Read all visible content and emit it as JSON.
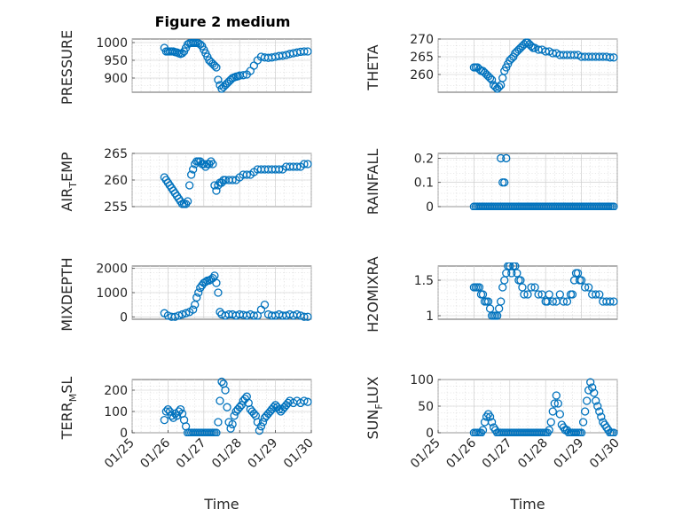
{
  "figure_title": "Figure 2 medium",
  "colors": {
    "marker": "#0072BD",
    "axis": "#262626"
  },
  "chart_data": [
    {
      "type": "scatter",
      "id": "pressure",
      "ylabel": "PRESSURE",
      "ylim": [
        860,
        1010
      ],
      "yticks": [
        900,
        950,
        1000
      ],
      "ytick_labels": [
        "900",
        "950",
        "1000"
      ],
      "xlim": [
        0,
        5
      ],
      "xlabel": "",
      "x": [
        0.9,
        0.95,
        1.0,
        1.05,
        1.1,
        1.15,
        1.2,
        1.25,
        1.3,
        1.35,
        1.4,
        1.45,
        1.5,
        1.55,
        1.6,
        1.65,
        1.7,
        1.75,
        1.8,
        1.85,
        1.9,
        1.95,
        2.0,
        2.05,
        2.1,
        2.15,
        2.2,
        2.25,
        2.3,
        2.35,
        2.4,
        2.45,
        2.5,
        2.55,
        2.6,
        2.65,
        2.7,
        2.75,
        2.8,
        2.85,
        2.9,
        2.95,
        3.0,
        3.1,
        3.2,
        3.3,
        3.4,
        3.5,
        3.6,
        3.7,
        3.8,
        3.9,
        4.0,
        4.1,
        4.2,
        4.3,
        4.4,
        4.5,
        4.6,
        4.7,
        4.8,
        4.9
      ],
      "y": [
        985,
        975,
        975,
        975,
        975,
        975,
        973,
        972,
        970,
        968,
        970,
        975,
        985,
        995,
        998,
        999,
        999,
        999,
        999,
        998,
        995,
        990,
        980,
        970,
        960,
        950,
        945,
        940,
        935,
        930,
        895,
        880,
        870,
        875,
        880,
        885,
        890,
        895,
        900,
        902,
        904,
        905,
        907,
        908,
        910,
        920,
        935,
        950,
        960,
        958,
        957,
        958,
        960,
        962,
        963,
        965,
        968,
        970,
        972,
        974,
        975,
        975
      ]
    },
    {
      "type": "scatter",
      "id": "theta",
      "ylabel": "THETA",
      "ylim": [
        255,
        270
      ],
      "yticks": [
        260,
        265,
        270
      ],
      "ytick_labels": [
        "260",
        "265",
        "270"
      ],
      "xlim": [
        0,
        5
      ],
      "xlabel": "",
      "x": [
        1.0,
        1.05,
        1.1,
        1.15,
        1.2,
        1.25,
        1.3,
        1.35,
        1.4,
        1.45,
        1.5,
        1.55,
        1.6,
        1.65,
        1.7,
        1.75,
        1.8,
        1.85,
        1.9,
        1.95,
        2.0,
        2.05,
        2.1,
        2.15,
        2.2,
        2.25,
        2.3,
        2.35,
        2.4,
        2.45,
        2.5,
        2.55,
        2.6,
        2.65,
        2.7,
        2.8,
        2.9,
        3.0,
        3.1,
        3.2,
        3.3,
        3.4,
        3.5,
        3.6,
        3.7,
        3.8,
        3.9,
        4.0,
        4.1,
        4.2,
        4.3,
        4.4,
        4.5,
        4.6,
        4.7,
        4.8,
        4.9
      ],
      "y": [
        262,
        262,
        262,
        261.5,
        261,
        261,
        260.5,
        260,
        259.5,
        259,
        258.5,
        257,
        256.5,
        256,
        256.5,
        257,
        259,
        261,
        262,
        263,
        264,
        264.5,
        265,
        266,
        266.5,
        267,
        267.5,
        268,
        268.5,
        269,
        269,
        268.5,
        268,
        267.5,
        267.5,
        267,
        267,
        266.5,
        266.5,
        266,
        266,
        265.5,
        265.5,
        265.5,
        265.5,
        265.5,
        265.5,
        265,
        265,
        265,
        265,
        265,
        265,
        265,
        265,
        264.8,
        264.8
      ]
    },
    {
      "type": "scatter",
      "id": "air_temp",
      "ylabel": "AIR_TEMP",
      "ylim": [
        255,
        265
      ],
      "yticks": [
        255,
        260,
        265
      ],
      "ytick_labels": [
        "255",
        "260",
        "265"
      ],
      "xlim": [
        0,
        5
      ],
      "xlabel": "",
      "x": [
        0.9,
        0.95,
        1.0,
        1.05,
        1.1,
        1.15,
        1.2,
        1.25,
        1.3,
        1.35,
        1.4,
        1.45,
        1.5,
        1.55,
        1.6,
        1.65,
        1.7,
        1.75,
        1.8,
        1.85,
        1.9,
        1.95,
        2.0,
        2.05,
        2.1,
        2.15,
        2.2,
        2.25,
        2.3,
        2.35,
        2.4,
        2.45,
        2.5,
        2.55,
        2.6,
        2.7,
        2.8,
        2.9,
        3.0,
        3.1,
        3.2,
        3.3,
        3.4,
        3.5,
        3.6,
        3.7,
        3.8,
        3.9,
        4.0,
        4.1,
        4.2,
        4.3,
        4.4,
        4.5,
        4.6,
        4.7,
        4.8,
        4.9
      ],
      "y": [
        260.5,
        260,
        259.5,
        259,
        258.5,
        258,
        257.5,
        257,
        256.5,
        256,
        255.5,
        255.5,
        255.5,
        256,
        259,
        261,
        262,
        263,
        263.5,
        263.5,
        263.5,
        263,
        263,
        262.5,
        263,
        263,
        263.5,
        263,
        259,
        258,
        259,
        259.5,
        259.5,
        260,
        260,
        260,
        260,
        260,
        260.5,
        261,
        261,
        261,
        261.5,
        262,
        262,
        262,
        262,
        262,
        262,
        262,
        262,
        262.5,
        262.5,
        262.5,
        262.5,
        262.5,
        263,
        263
      ]
    },
    {
      "type": "scatter",
      "id": "rainfall",
      "ylabel": "RAINFALL",
      "ylim": [
        0,
        0.22
      ],
      "yticks": [
        0,
        0.1,
        0.2
      ],
      "ytick_labels": [
        "0",
        "0.1",
        "0.2"
      ],
      "xlim": [
        0,
        5
      ],
      "xlabel": "",
      "x": [
        1.0,
        1.05,
        1.1,
        1.15,
        1.2,
        1.25,
        1.3,
        1.35,
        1.4,
        1.45,
        1.5,
        1.55,
        1.6,
        1.65,
        1.7,
        1.75,
        1.8,
        1.85,
        1.9,
        1.95,
        2.0,
        2.05,
        2.1,
        2.15,
        2.2,
        2.25,
        2.3,
        2.35,
        2.4,
        2.45,
        2.5,
        2.55,
        2.6,
        2.65,
        2.7,
        2.75,
        2.8,
        2.85,
        2.9,
        2.95,
        3.0,
        3.05,
        3.1,
        3.15,
        3.2,
        3.25,
        3.3,
        3.35,
        3.4,
        3.45,
        3.5,
        3.55,
        3.6,
        3.65,
        3.7,
        3.75,
        3.8,
        3.85,
        3.9,
        3.95,
        4.0,
        4.05,
        4.1,
        4.15,
        4.2,
        4.25,
        4.3,
        4.35,
        4.4,
        4.45,
        4.5,
        4.55,
        4.6,
        4.65,
        4.7,
        4.75,
        4.8,
        4.85,
        4.9,
        1.75,
        1.8,
        1.85,
        1.9
      ],
      "y": [
        0,
        0,
        0,
        0,
        0,
        0,
        0,
        0,
        0,
        0,
        0,
        0,
        0,
        0,
        0,
        0,
        0,
        0,
        0,
        0,
        0,
        0,
        0,
        0,
        0,
        0,
        0,
        0,
        0,
        0,
        0,
        0,
        0,
        0,
        0,
        0,
        0,
        0,
        0,
        0,
        0,
        0,
        0,
        0,
        0,
        0,
        0,
        0,
        0,
        0,
        0,
        0,
        0,
        0,
        0,
        0,
        0,
        0,
        0,
        0,
        0,
        0,
        0,
        0,
        0,
        0,
        0,
        0,
        0,
        0,
        0,
        0,
        0,
        0,
        0,
        0,
        0,
        0,
        0,
        0.2,
        0.1,
        0.1,
        0.2
      ]
    },
    {
      "type": "scatter",
      "id": "mixdepth",
      "ylabel": "MIXDEPTH",
      "ylim": [
        -100,
        2100
      ],
      "yticks": [
        0,
        1000,
        2000
      ],
      "ytick_labels": [
        "0",
        "1000",
        "2000"
      ],
      "xlim": [
        0,
        5
      ],
      "xlabel": "",
      "x": [
        0.9,
        1.0,
        1.1,
        1.2,
        1.3,
        1.4,
        1.5,
        1.6,
        1.7,
        1.75,
        1.8,
        1.85,
        1.9,
        1.95,
        2.0,
        2.05,
        2.1,
        2.15,
        2.2,
        2.25,
        2.3,
        2.35,
        2.4,
        2.45,
        2.5,
        2.6,
        2.7,
        2.8,
        2.9,
        3.0,
        3.1,
        3.2,
        3.3,
        3.4,
        3.5,
        3.6,
        3.7,
        3.8,
        3.9,
        4.0,
        4.1,
        4.2,
        4.3,
        4.4,
        4.5,
        4.6,
        4.7,
        4.8,
        4.9
      ],
      "y": [
        150,
        50,
        0,
        0,
        50,
        100,
        150,
        200,
        300,
        500,
        800,
        1000,
        1200,
        1300,
        1400,
        1450,
        1500,
        1500,
        1550,
        1600,
        1700,
        1400,
        1000,
        200,
        100,
        50,
        100,
        100,
        50,
        100,
        80,
        50,
        100,
        50,
        50,
        300,
        500,
        100,
        50,
        50,
        100,
        50,
        50,
        100,
        50,
        100,
        50,
        0,
        0
      ]
    },
    {
      "type": "scatter",
      "id": "h2omixra",
      "ylabel": "H2OMIXRA",
      "ylim": [
        0.95,
        1.7
      ],
      "yticks": [
        1,
        1.5
      ],
      "ytick_labels": [
        "1",
        "1.5"
      ],
      "xlim": [
        0,
        5
      ],
      "xlabel": "",
      "x": [
        1.0,
        1.05,
        1.1,
        1.15,
        1.2,
        1.25,
        1.3,
        1.35,
        1.4,
        1.45,
        1.5,
        1.55,
        1.6,
        1.65,
        1.7,
        1.75,
        1.8,
        1.85,
        1.9,
        1.95,
        2.0,
        2.05,
        2.1,
        2.15,
        2.2,
        2.25,
        2.3,
        2.35,
        2.4,
        2.5,
        2.6,
        2.7,
        2.8,
        2.9,
        3.0,
        3.05,
        3.1,
        3.2,
        3.3,
        3.4,
        3.5,
        3.6,
        3.7,
        3.75,
        3.8,
        3.85,
        3.9,
        3.95,
        4.0,
        4.1,
        4.2,
        4.3,
        4.4,
        4.5,
        4.6,
        4.7,
        4.8,
        4.9
      ],
      "y": [
        1.4,
        1.4,
        1.4,
        1.4,
        1.3,
        1.3,
        1.2,
        1.2,
        1.2,
        1.1,
        1.0,
        1.0,
        1.0,
        1.0,
        1.1,
        1.2,
        1.4,
        1.5,
        1.6,
        1.7,
        1.7,
        1.6,
        1.7,
        1.7,
        1.6,
        1.5,
        1.5,
        1.4,
        1.3,
        1.3,
        1.4,
        1.4,
        1.3,
        1.3,
        1.2,
        1.2,
        1.3,
        1.2,
        1.2,
        1.3,
        1.2,
        1.2,
        1.3,
        1.3,
        1.5,
        1.6,
        1.6,
        1.5,
        1.5,
        1.4,
        1.4,
        1.3,
        1.3,
        1.3,
        1.2,
        1.2,
        1.2,
        1.2
      ]
    },
    {
      "type": "scatter",
      "id": "terr_msl",
      "ylabel": "TERR_MSL",
      "ylim": [
        0,
        250
      ],
      "yticks": [
        0,
        100,
        200
      ],
      "ytick_labels": [
        "0",
        "100",
        "200"
      ],
      "xlim": [
        0,
        5
      ],
      "xlabel": "Time",
      "xticks": [
        0,
        1,
        2,
        3,
        4,
        5
      ],
      "xtick_labels": [
        "01/25",
        "01/26",
        "01/27",
        "01/28",
        "01/29",
        "01/30"
      ],
      "x": [
        0.9,
        0.95,
        1.0,
        1.05,
        1.1,
        1.15,
        1.2,
        1.25,
        1.3,
        1.35,
        1.4,
        1.45,
        1.5,
        1.55,
        1.6,
        1.65,
        1.7,
        1.75,
        1.8,
        1.85,
        1.9,
        1.95,
        2.0,
        2.05,
        2.1,
        2.15,
        2.2,
        2.25,
        2.3,
        2.35,
        2.4,
        2.45,
        2.5,
        2.55,
        2.6,
        2.65,
        2.7,
        2.75,
        2.8,
        2.85,
        2.9,
        2.95,
        3.0,
        3.05,
        3.1,
        3.15,
        3.2,
        3.25,
        3.3,
        3.35,
        3.4,
        3.45,
        3.5,
        3.55,
        3.6,
        3.65,
        3.7,
        3.75,
        3.8,
        3.85,
        3.9,
        3.95,
        4.0,
        4.05,
        4.1,
        4.15,
        4.2,
        4.25,
        4.3,
        4.35,
        4.4,
        4.5,
        4.6,
        4.7,
        4.8,
        4.9
      ],
      "y": [
        60,
        100,
        110,
        100,
        80,
        70,
        90,
        80,
        100,
        110,
        90,
        60,
        30,
        0,
        0,
        0,
        0,
        0,
        0,
        0,
        0,
        0,
        0,
        0,
        0,
        0,
        0,
        0,
        0,
        0,
        50,
        150,
        240,
        230,
        200,
        120,
        50,
        20,
        40,
        80,
        100,
        110,
        120,
        130,
        150,
        160,
        170,
        140,
        110,
        100,
        90,
        80,
        50,
        10,
        30,
        50,
        70,
        80,
        90,
        100,
        110,
        120,
        130,
        120,
        110,
        100,
        110,
        120,
        130,
        140,
        150,
        140,
        150,
        140,
        150,
        145
      ]
    },
    {
      "type": "scatter",
      "id": "sun_flux",
      "ylabel": "SUN_FLUX",
      "ylim": [
        0,
        100
      ],
      "yticks": [
        0,
        50,
        100
      ],
      "ytick_labels": [
        "0",
        "50",
        "100"
      ],
      "xlim": [
        0,
        5
      ],
      "xlabel": "Time",
      "xticks": [
        0,
        1,
        2,
        3,
        4,
        5
      ],
      "xtick_labels": [
        "01/25",
        "01/26",
        "01/27",
        "01/28",
        "01/29",
        "01/30"
      ],
      "x": [
        1.0,
        1.05,
        1.1,
        1.15,
        1.2,
        1.25,
        1.3,
        1.35,
        1.4,
        1.45,
        1.5,
        1.55,
        1.6,
        1.65,
        1.7,
        1.75,
        1.8,
        1.85,
        1.9,
        1.95,
        2.0,
        2.05,
        2.1,
        2.15,
        2.2,
        2.25,
        2.3,
        2.35,
        2.4,
        2.45,
        2.5,
        2.55,
        2.6,
        2.65,
        2.7,
        2.75,
        2.8,
        2.85,
        2.9,
        2.95,
        3.0,
        3.05,
        3.1,
        3.15,
        3.2,
        3.25,
        3.3,
        3.35,
        3.4,
        3.45,
        3.5,
        3.55,
        3.6,
        3.65,
        3.7,
        3.75,
        3.8,
        3.85,
        3.9,
        3.95,
        4.0,
        4.05,
        4.1,
        4.15,
        4.2,
        4.25,
        4.3,
        4.35,
        4.4,
        4.45,
        4.5,
        4.55,
        4.6,
        4.65,
        4.7,
        4.75,
        4.8,
        4.85,
        4.9
      ],
      "y": [
        0,
        0,
        0,
        0,
        0,
        5,
        20,
        30,
        35,
        30,
        20,
        10,
        5,
        0,
        0,
        0,
        0,
        0,
        0,
        0,
        0,
        0,
        0,
        0,
        0,
        0,
        0,
        0,
        0,
        0,
        0,
        0,
        0,
        0,
        0,
        0,
        0,
        0,
        0,
        0,
        0,
        0,
        5,
        20,
        40,
        55,
        70,
        55,
        35,
        15,
        10,
        5,
        5,
        0,
        0,
        0,
        0,
        0,
        0,
        0,
        0,
        20,
        40,
        60,
        80,
        95,
        85,
        75,
        60,
        50,
        40,
        30,
        20,
        15,
        10,
        5,
        0,
        0,
        0
      ]
    }
  ]
}
